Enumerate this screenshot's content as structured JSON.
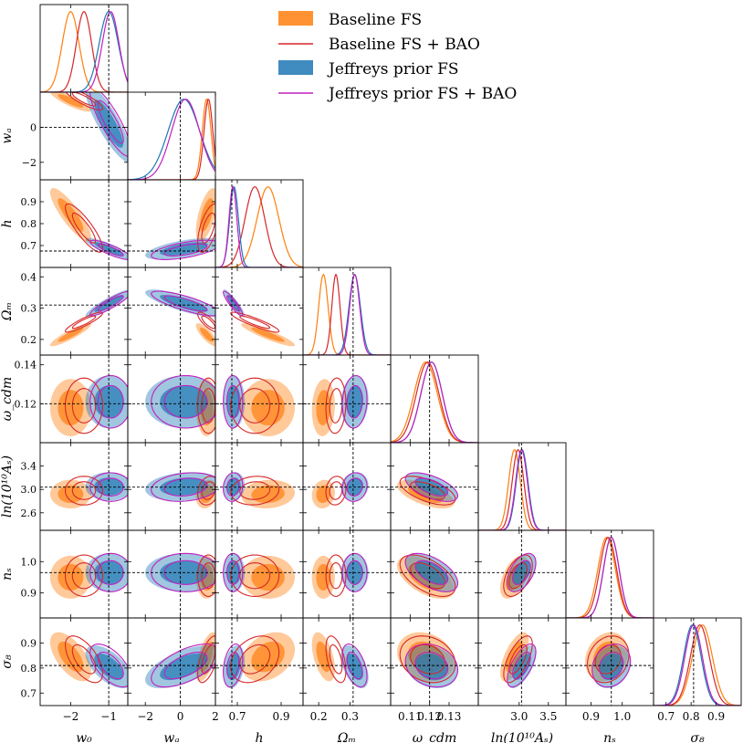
{
  "chart_data": {
    "type": "corner",
    "colors": {
      "baseline_fs": "#ff7f0e",
      "baseline_fs_bao": "#d62728",
      "jeffreys_fs": "#1f77b4",
      "jeffreys_fs_bao": "#c020c0",
      "truth": "#000000"
    },
    "legend": [
      {
        "label": "Baseline FS",
        "style": "filled",
        "color": "#ff7f0e"
      },
      {
        "label": "Baseline FS + BAO",
        "style": "line",
        "color": "#d62728"
      },
      {
        "label": "Jeffreys prior FS",
        "style": "filled",
        "color": "#1f77b4"
      },
      {
        "label": "Jeffreys prior FS + BAO",
        "style": "line",
        "color": "#c020c0"
      }
    ],
    "params": [
      {
        "key": "w0",
        "label": "w₀",
        "range": [
          -2.8,
          -0.5
        ],
        "ticks": [
          -2,
          -1
        ],
        "ticklabels": [
          "−2",
          "−1"
        ],
        "truth": -1
      },
      {
        "key": "wa",
        "label": "wₐ",
        "range": [
          -3.0,
          2.0
        ],
        "ticks": [
          -2,
          0,
          2
        ],
        "ticklabels": [
          "−2",
          "0",
          "2"
        ],
        "truth": 0
      },
      {
        "key": "h",
        "label": "h",
        "range": [
          0.6,
          1.0
        ],
        "ticks": [
          0.7,
          0.9
        ],
        "ticklabels": [
          "0.7",
          "0.9"
        ],
        "truth": 0.675
      },
      {
        "key": "Om",
        "label": "Ωₘ",
        "range": [
          0.15,
          0.43
        ],
        "ticks": [
          0.2,
          0.3
        ],
        "ticklabels": [
          "0.2",
          "0.3"
        ],
        "truth": 0.31
      },
      {
        "key": "ocdm",
        "label": "ω_cdm",
        "range": [
          0.1,
          0.145
        ],
        "ticks": [
          0.11,
          0.12,
          0.13
        ],
        "ticklabels": [
          "0.11",
          "0.12",
          "0.13"
        ],
        "truth": 0.12
      },
      {
        "key": "lnAs",
        "label": "ln(10¹⁰Aₛ)",
        "range": [
          2.3,
          3.8
        ],
        "ticks": [
          3.0,
          3.5
        ],
        "ticklabels": [
          "3.0",
          "3.5"
        ],
        "truth": 3.04
      },
      {
        "key": "ns",
        "label": "nₛ",
        "range": [
          0.82,
          1.1
        ],
        "ticks": [
          0.9,
          1.0
        ],
        "ticklabels": [
          "0.9",
          "1.0"
        ],
        "truth": 0.965
      },
      {
        "key": "s8",
        "label": "σ₈",
        "range": [
          0.65,
          1.0
        ],
        "ticks": [
          0.7,
          0.8,
          0.9
        ],
        "ticklabels": [
          "0.7",
          "0.8",
          "0.9"
        ],
        "truth": 0.81
      }
    ],
    "row_ticks": {
      "wa": {
        "ticks": [
          0,
          -2
        ],
        "ticklabels": [
          "0",
          "−2"
        ]
      },
      "h": {
        "ticks": [
          0.9,
          0.8,
          0.7
        ],
        "ticklabels": [
          "0.9",
          "0.8",
          "0.7"
        ]
      },
      "Om": {
        "ticks": [
          0.4,
          0.3,
          0.2
        ],
        "ticklabels": [
          "0.4",
          "0.3",
          "0.2"
        ]
      },
      "ocdm": {
        "ticks": [
          0.14,
          0.12
        ],
        "ticklabels": [
          "0.14",
          "0.12"
        ]
      },
      "lnAs": {
        "ticks": [
          3.4,
          3.0,
          2.6
        ],
        "ticklabels": [
          "3.4",
          "3.0",
          "2.6"
        ]
      },
      "ns": {
        "ticks": [
          1.0,
          0.9
        ],
        "ticklabels": [
          "1.0",
          "0.9"
        ]
      },
      "s8": {
        "ticks": [
          0.9,
          0.8,
          0.7
        ],
        "ticklabels": [
          "0.9",
          "0.8",
          "0.7"
        ]
      }
    },
    "marginals": {
      "baseline_fs": {
        "mean": [
          -2.0,
          1.5,
          0.84,
          0.215,
          0.118,
          2.92,
          0.95,
          0.845
        ],
        "sd": [
          0.22,
          0.25,
          0.05,
          0.015,
          0.006,
          0.1,
          0.028,
          0.04
        ]
      },
      "baseline_fs_bao": {
        "mean": [
          -1.65,
          1.6,
          0.78,
          0.255,
          0.119,
          2.98,
          0.955,
          0.835
        ],
        "sd": [
          0.2,
          0.25,
          0.045,
          0.013,
          0.0058,
          0.1,
          0.027,
          0.038
        ]
      },
      "jeffreys_fs": {
        "mean": [
          -1.0,
          0.2,
          0.685,
          0.315,
          0.121,
          3.05,
          0.965,
          0.805
        ],
        "sd": [
          0.25,
          0.9,
          0.02,
          0.018,
          0.0055,
          0.1,
          0.025,
          0.035
        ]
      },
      "jeffreys_fs_bao": {
        "mean": [
          -0.95,
          0.3,
          0.68,
          0.315,
          0.121,
          3.04,
          0.965,
          0.81
        ],
        "sd": [
          0.22,
          0.8,
          0.018,
          0.016,
          0.0055,
          0.1,
          0.025,
          0.035
        ]
      }
    },
    "correlations": {
      "w0,wa": -0.85,
      "w0,h": -0.85,
      "w0,Om": 0.9,
      "w0,ocdm": 0.0,
      "w0,lnAs": 0.0,
      "w0,ns": 0.0,
      "w0,s8": -0.6,
      "wa,h": 0.6,
      "wa,Om": -0.8,
      "wa,ocdm": 0.0,
      "wa,lnAs": 0.2,
      "wa,ns": 0.0,
      "wa,s8": 0.6,
      "h,Om": -0.9,
      "h,ocdm": 0.0,
      "h,lnAs": 0.1,
      "h,ns": 0.0,
      "h,s8": 0.3,
      "Om,ocdm": 0.1,
      "Om,lnAs": 0.1,
      "Om,ns": 0.0,
      "Om,s8": -0.5,
      "ocdm,lnAs": -0.6,
      "ocdm,ns": -0.55,
      "ocdm,s8": -0.2,
      "lnAs,ns": 0.5,
      "lnAs,s8": 0.65,
      "ns,s8": 0.2
    },
    "reference_lines": "dashed black lines at fiducial (truth) values"
  }
}
